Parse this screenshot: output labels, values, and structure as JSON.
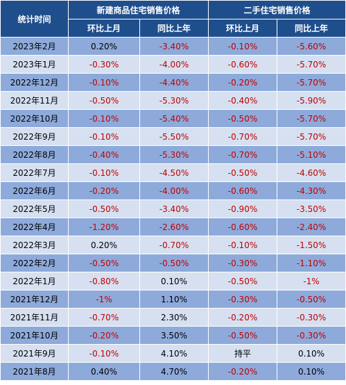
{
  "header": {
    "col_period": "统计时间",
    "group_new": "新建商品住宅销售价格",
    "group_used": "二手住宅销售价格",
    "mom": "环比上月",
    "yoy": "同比上年"
  },
  "rows": [
    {
      "period": "2023年2月",
      "new_mom": "0.20%",
      "new_yoy": "-3.40%",
      "used_mom": "-0.10%",
      "used_yoy": "-5.60%"
    },
    {
      "period": "2023年1月",
      "new_mom": "-0.30%",
      "new_yoy": "-4.00%",
      "used_mom": "-0.60%",
      "used_yoy": "-5.70%"
    },
    {
      "period": "2022年12月",
      "new_mom": "-0.10%",
      "new_yoy": "-4.40%",
      "used_mom": "-0.20%",
      "used_yoy": "-5.70%"
    },
    {
      "period": "2022年11月",
      "new_mom": "-0.50%",
      "new_yoy": "-5.30%",
      "used_mom": "-0.40%",
      "used_yoy": "-5.90%"
    },
    {
      "period": "2022年10月",
      "new_mom": "-0.10%",
      "new_yoy": "-5.40%",
      "used_mom": "-0.50%",
      "used_yoy": "-5.70%"
    },
    {
      "period": "2022年9月",
      "new_mom": "-0.10%",
      "new_yoy": "-5.50%",
      "used_mom": "-0.70%",
      "used_yoy": "-5.70%"
    },
    {
      "period": "2022年8月",
      "new_mom": "-0.40%",
      "new_yoy": "-5.30%",
      "used_mom": "-0.70%",
      "used_yoy": "-5.10%"
    },
    {
      "period": "2022年7月",
      "new_mom": "-0.10%",
      "new_yoy": "-4.50%",
      "used_mom": "-0.50%",
      "used_yoy": "-4.60%"
    },
    {
      "period": "2022年6月",
      "new_mom": "-0.20%",
      "new_yoy": "-4.00%",
      "used_mom": "-0.60%",
      "used_yoy": "-4.30%"
    },
    {
      "period": "2022年5月",
      "new_mom": "-0.50%",
      "new_yoy": "-3.40%",
      "used_mom": "-0.90%",
      "used_yoy": "-3.50%"
    },
    {
      "period": "2022年4月",
      "new_mom": "-1.20%",
      "new_yoy": "-2.60%",
      "used_mom": "-0.60%",
      "used_yoy": "-2.40%"
    },
    {
      "period": "2022年3月",
      "new_mom": "0.20%",
      "new_yoy": "-0.70%",
      "used_mom": "-0.10%",
      "used_yoy": "-1.50%"
    },
    {
      "period": "2022年2月",
      "new_mom": "-0.50%",
      "new_yoy": "-0.50%",
      "used_mom": "-0.30%",
      "used_yoy": "-1.10%"
    },
    {
      "period": "2022年1月",
      "new_mom": "-0.80%",
      "new_yoy": "0.10%",
      "used_mom": "-0.50%",
      "used_yoy": "-1%"
    },
    {
      "period": "2021年12月",
      "new_mom": "-1%",
      "new_yoy": "1.10%",
      "used_mom": "-0.30%",
      "used_yoy": "-0.50%"
    },
    {
      "period": "2021年11月",
      "new_mom": "-0.70%",
      "new_yoy": "2.30%",
      "used_mom": "-0.20%",
      "used_yoy": "-0.30%"
    },
    {
      "period": "2021年10月",
      "new_mom": "-0.20%",
      "new_yoy": "3.50%",
      "used_mom": "-0.50%",
      "used_yoy": "-0.30%"
    },
    {
      "period": "2021年9月",
      "new_mom": "-0.10%",
      "new_yoy": "4.10%",
      "used_mom": "持平",
      "used_yoy": "0.10%"
    },
    {
      "period": "2021年8月",
      "new_mom": "0.40%",
      "new_yoy": "4.70%",
      "used_mom": "-0.20%",
      "used_yoy": "0.10%"
    }
  ],
  "colors": {
    "header_bg": "#1f4e8c",
    "row_dark": "#8eaadb",
    "row_light": "#d6e0f0",
    "negative": "#c00000"
  }
}
